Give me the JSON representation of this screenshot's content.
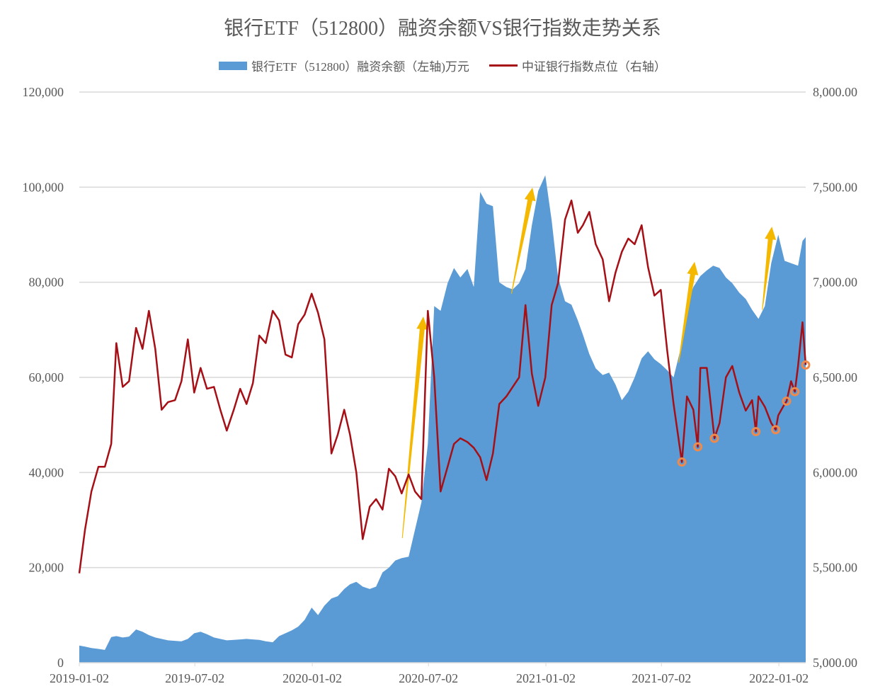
{
  "chart_data": {
    "type": "area+line",
    "title": "银行ETF（512800）融资余额VS银行指数走势关系",
    "xlim": [
      "2019-01-02",
      "2022-02-13"
    ],
    "x_ticks": [
      "2019-01-02",
      "2019-07-02",
      "2020-01-02",
      "2020-07-02",
      "2021-01-02",
      "2021-07-02",
      "2022-01-02"
    ],
    "y_left": {
      "lim": [
        0,
        120000
      ],
      "ticks": [
        "0",
        "20,000",
        "40,000",
        "60,000",
        "80,000",
        "100,000",
        "120,000"
      ],
      "tick_values": [
        0,
        20000,
        40000,
        60000,
        80000,
        100000,
        120000
      ]
    },
    "y_right": {
      "lim": [
        5000,
        8000
      ],
      "ticks": [
        "5,000.00",
        "5,500.00",
        "6,000.00",
        "6,500.00",
        "7,000.00",
        "7,500.00",
        "8,000.00"
      ],
      "tick_values": [
        5000,
        5500,
        6000,
        6500,
        7000,
        7500,
        8000
      ]
    },
    "grid": true,
    "legend_position": "top",
    "colors": {
      "area": "#5b9bd5",
      "line": "#a50f15",
      "arrow": "#f5b800",
      "marker": "#f08a4b",
      "grid": "#d9d9d9",
      "text": "#595959"
    },
    "series": [
      {
        "name": "银行ETF（512800）融资余额（左轴)万元",
        "type": "area",
        "axis": "left",
        "points": [
          [
            "2019-01-02",
            3600
          ],
          [
            "2019-01-11",
            3400
          ],
          [
            "2019-01-21",
            3100
          ],
          [
            "2019-02-01",
            2900
          ],
          [
            "2019-02-11",
            2700
          ],
          [
            "2019-02-21",
            5400
          ],
          [
            "2019-03-01",
            5600
          ],
          [
            "2019-03-11",
            5300
          ],
          [
            "2019-03-21",
            5500
          ],
          [
            "2019-04-01",
            7000
          ],
          [
            "2019-04-11",
            6500
          ],
          [
            "2019-04-21",
            5800
          ],
          [
            "2019-05-01",
            5300
          ],
          [
            "2019-05-11",
            5000
          ],
          [
            "2019-05-21",
            4700
          ],
          [
            "2019-06-01",
            4600
          ],
          [
            "2019-06-11",
            4500
          ],
          [
            "2019-06-21",
            5000
          ],
          [
            "2019-07-01",
            6200
          ],
          [
            "2019-07-11",
            6500
          ],
          [
            "2019-07-21",
            6000
          ],
          [
            "2019-08-01",
            5300
          ],
          [
            "2019-08-11",
            5000
          ],
          [
            "2019-08-21",
            4700
          ],
          [
            "2019-09-01",
            4800
          ],
          [
            "2019-09-11",
            4900
          ],
          [
            "2019-09-21",
            5000
          ],
          [
            "2019-10-01",
            4900
          ],
          [
            "2019-10-11",
            4800
          ],
          [
            "2019-10-21",
            4500
          ],
          [
            "2019-11-01",
            4300
          ],
          [
            "2019-11-11",
            5600
          ],
          [
            "2019-11-21",
            6200
          ],
          [
            "2019-12-01",
            6800
          ],
          [
            "2019-12-11",
            7600
          ],
          [
            "2019-12-21",
            9000
          ],
          [
            "2020-01-01",
            11600
          ],
          [
            "2020-01-11",
            10000
          ],
          [
            "2020-01-21",
            12000
          ],
          [
            "2020-02-01",
            13500
          ],
          [
            "2020-02-11",
            14000
          ],
          [
            "2020-02-21",
            15500
          ],
          [
            "2020-03-01",
            16500
          ],
          [
            "2020-03-11",
            17000
          ],
          [
            "2020-03-21",
            16000
          ],
          [
            "2020-04-01",
            15500
          ],
          [
            "2020-04-11",
            16000
          ],
          [
            "2020-04-21",
            19000
          ],
          [
            "2020-05-01",
            20000
          ],
          [
            "2020-05-11",
            21500
          ],
          [
            "2020-05-21",
            22000
          ],
          [
            "2020-06-01",
            22300
          ],
          [
            "2020-06-11",
            28000
          ],
          [
            "2020-06-21",
            33700
          ],
          [
            "2020-07-01",
            46000
          ],
          [
            "2020-07-11",
            75000
          ],
          [
            "2020-07-21",
            74000
          ],
          [
            "2020-08-01",
            79800
          ],
          [
            "2020-08-11",
            83000
          ],
          [
            "2020-08-21",
            81000
          ],
          [
            "2020-09-01",
            82800
          ],
          [
            "2020-09-11",
            79000
          ],
          [
            "2020-09-21",
            99000
          ],
          [
            "2020-10-01",
            96500
          ],
          [
            "2020-10-11",
            96000
          ],
          [
            "2020-10-21",
            80000
          ],
          [
            "2020-11-01",
            79000
          ],
          [
            "2020-11-11",
            78500
          ],
          [
            "2020-11-21",
            79800
          ],
          [
            "2020-12-01",
            82800
          ],
          [
            "2020-12-11",
            92000
          ],
          [
            "2020-12-21",
            99200
          ],
          [
            "2021-01-01",
            102500
          ],
          [
            "2021-01-11",
            93000
          ],
          [
            "2021-01-21",
            81000
          ],
          [
            "2021-02-01",
            76000
          ],
          [
            "2021-02-11",
            75300
          ],
          [
            "2021-02-21",
            72000
          ],
          [
            "2021-03-01",
            69000
          ],
          [
            "2021-03-11",
            64900
          ],
          [
            "2021-03-21",
            61900
          ],
          [
            "2021-04-01",
            60500
          ],
          [
            "2021-04-11",
            61000
          ],
          [
            "2021-04-21",
            58500
          ],
          [
            "2021-05-01",
            55200
          ],
          [
            "2021-05-11",
            57000
          ],
          [
            "2021-05-21",
            60000
          ],
          [
            "2021-06-01",
            64000
          ],
          [
            "2021-06-11",
            65500
          ],
          [
            "2021-06-21",
            63800
          ],
          [
            "2021-07-01",
            62800
          ],
          [
            "2021-07-11",
            61500
          ],
          [
            "2021-07-21",
            60000
          ],
          [
            "2021-08-01",
            66000
          ],
          [
            "2021-08-11",
            75300
          ],
          [
            "2021-08-21",
            79000
          ],
          [
            "2021-09-01",
            81300
          ],
          [
            "2021-09-11",
            82500
          ],
          [
            "2021-09-21",
            83500
          ],
          [
            "2021-10-01",
            83000
          ],
          [
            "2021-10-11",
            81000
          ],
          [
            "2021-10-21",
            79800
          ],
          [
            "2021-11-01",
            77800
          ],
          [
            "2021-11-11",
            76500
          ],
          [
            "2021-11-21",
            74200
          ],
          [
            "2021-12-01",
            72300
          ],
          [
            "2021-12-11",
            75000
          ],
          [
            "2021-12-21",
            84000
          ],
          [
            "2022-01-01",
            90000
          ],
          [
            "2022-01-11",
            84500
          ],
          [
            "2022-01-21",
            84000
          ],
          [
            "2022-02-01",
            83500
          ],
          [
            "2022-02-08",
            88700
          ],
          [
            "2022-02-13",
            89500
          ]
        ]
      },
      {
        "name": "中证银行指数点位（右轴）",
        "type": "line",
        "axis": "right",
        "points": [
          [
            "2019-01-02",
            5470
          ],
          [
            "2019-01-11",
            5700
          ],
          [
            "2019-01-21",
            5900
          ],
          [
            "2019-02-01",
            6030
          ],
          [
            "2019-02-11",
            6030
          ],
          [
            "2019-02-21",
            6150
          ],
          [
            "2019-03-01",
            6680
          ],
          [
            "2019-03-11",
            6450
          ],
          [
            "2019-03-21",
            6480
          ],
          [
            "2019-04-01",
            6760
          ],
          [
            "2019-04-11",
            6650
          ],
          [
            "2019-04-21",
            6850
          ],
          [
            "2019-05-01",
            6650
          ],
          [
            "2019-05-11",
            6330
          ],
          [
            "2019-05-21",
            6370
          ],
          [
            "2019-06-01",
            6380
          ],
          [
            "2019-06-11",
            6480
          ],
          [
            "2019-06-21",
            6700
          ],
          [
            "2019-07-01",
            6420
          ],
          [
            "2019-07-11",
            6550
          ],
          [
            "2019-07-21",
            6440
          ],
          [
            "2019-08-01",
            6450
          ],
          [
            "2019-08-11",
            6330
          ],
          [
            "2019-08-21",
            6220
          ],
          [
            "2019-09-01",
            6330
          ],
          [
            "2019-09-11",
            6440
          ],
          [
            "2019-09-21",
            6360
          ],
          [
            "2019-10-01",
            6470
          ],
          [
            "2019-10-11",
            6720
          ],
          [
            "2019-10-21",
            6680
          ],
          [
            "2019-11-01",
            6850
          ],
          [
            "2019-11-11",
            6800
          ],
          [
            "2019-11-21",
            6620
          ],
          [
            "2019-12-01",
            6605
          ],
          [
            "2019-12-11",
            6780
          ],
          [
            "2019-12-21",
            6830
          ],
          [
            "2020-01-01",
            6940
          ],
          [
            "2020-01-11",
            6840
          ],
          [
            "2020-01-21",
            6700
          ],
          [
            "2020-02-01",
            6100
          ],
          [
            "2020-02-11",
            6200
          ],
          [
            "2020-02-21",
            6330
          ],
          [
            "2020-03-01",
            6200
          ],
          [
            "2020-03-11",
            6000
          ],
          [
            "2020-03-21",
            5650
          ],
          [
            "2020-04-01",
            5820
          ],
          [
            "2020-04-11",
            5860
          ],
          [
            "2020-04-21",
            5805
          ],
          [
            "2020-05-01",
            6020
          ],
          [
            "2020-05-11",
            5980
          ],
          [
            "2020-05-21",
            5890
          ],
          [
            "2020-06-01",
            5990
          ],
          [
            "2020-06-11",
            5900
          ],
          [
            "2020-06-21",
            5860
          ],
          [
            "2020-07-01",
            6850
          ],
          [
            "2020-07-11",
            6500
          ],
          [
            "2020-07-21",
            5900
          ],
          [
            "2020-08-01",
            6030
          ],
          [
            "2020-08-11",
            6150
          ],
          [
            "2020-08-21",
            6180
          ],
          [
            "2020-09-01",
            6160
          ],
          [
            "2020-09-11",
            6130
          ],
          [
            "2020-09-21",
            6080
          ],
          [
            "2020-10-01",
            5960
          ],
          [
            "2020-10-11",
            6100
          ],
          [
            "2020-10-21",
            6360
          ],
          [
            "2020-11-01",
            6400
          ],
          [
            "2020-11-11",
            6450
          ],
          [
            "2020-11-21",
            6500
          ],
          [
            "2020-12-01",
            6880
          ],
          [
            "2020-12-11",
            6520
          ],
          [
            "2020-12-21",
            6350
          ],
          [
            "2021-01-01",
            6500
          ],
          [
            "2021-01-11",
            6880
          ],
          [
            "2021-01-21",
            6995
          ],
          [
            "2021-02-01",
            7330
          ],
          [
            "2021-02-11",
            7430
          ],
          [
            "2021-02-21",
            7260
          ],
          [
            "2021-03-01",
            7300
          ],
          [
            "2021-03-11",
            7370
          ],
          [
            "2021-03-21",
            7200
          ],
          [
            "2021-04-01",
            7120
          ],
          [
            "2021-04-11",
            6900
          ],
          [
            "2021-04-21",
            7050
          ],
          [
            "2021-05-01",
            7160
          ],
          [
            "2021-05-11",
            7230
          ],
          [
            "2021-05-21",
            7200
          ],
          [
            "2021-06-01",
            7300
          ],
          [
            "2021-06-11",
            7080
          ],
          [
            "2021-06-21",
            6930
          ],
          [
            "2021-07-01",
            6960
          ],
          [
            "2021-07-11",
            6640
          ],
          [
            "2021-07-21",
            6360
          ],
          [
            "2021-08-03",
            6055
          ],
          [
            "2021-08-11",
            6400
          ],
          [
            "2021-08-21",
            6330
          ],
          [
            "2021-08-28",
            6135
          ],
          [
            "2021-09-01",
            6550
          ],
          [
            "2021-09-11",
            6550
          ],
          [
            "2021-09-23",
            6180
          ],
          [
            "2021-10-01",
            6260
          ],
          [
            "2021-10-11",
            6500
          ],
          [
            "2021-10-21",
            6560
          ],
          [
            "2021-11-01",
            6420
          ],
          [
            "2021-11-11",
            6325
          ],
          [
            "2021-11-21",
            6380
          ],
          [
            "2021-11-27",
            6215
          ],
          [
            "2021-12-01",
            6400
          ],
          [
            "2021-12-11",
            6345
          ],
          [
            "2021-12-21",
            6260
          ],
          [
            "2021-12-28",
            6225
          ],
          [
            "2022-01-01",
            6300
          ],
          [
            "2022-01-11",
            6360
          ],
          [
            "2022-01-14",
            6375
          ],
          [
            "2022-01-21",
            6480
          ],
          [
            "2022-01-27",
            6425
          ],
          [
            "2022-02-01",
            6560
          ],
          [
            "2022-02-08",
            6790
          ],
          [
            "2022-02-13",
            6565
          ]
        ]
      }
    ],
    "markers": {
      "axis": "right",
      "points": [
        [
          "2021-08-03",
          6055
        ],
        [
          "2021-08-28",
          6135
        ],
        [
          "2021-09-23",
          6180
        ],
        [
          "2021-11-27",
          6215
        ],
        [
          "2021-12-28",
          6225
        ],
        [
          "2022-01-14",
          6375
        ],
        [
          "2022-01-27",
          6425
        ],
        [
          "2022-02-13",
          6565
        ]
      ]
    },
    "arrows": {
      "axis": "left",
      "items": [
        {
          "from": [
            "2020-05-22",
            26200
          ],
          "to": [
            "2020-06-24",
            72800
          ]
        },
        {
          "from": [
            "2020-11-09",
            77600
          ],
          "to": [
            "2020-12-12",
            99900
          ]
        },
        {
          "from": [
            "2021-07-29",
            63100
          ],
          "to": [
            "2021-08-23",
            84300
          ]
        },
        {
          "from": [
            "2021-12-07",
            74200
          ],
          "to": [
            "2021-12-22",
            91700
          ]
        }
      ]
    }
  }
}
